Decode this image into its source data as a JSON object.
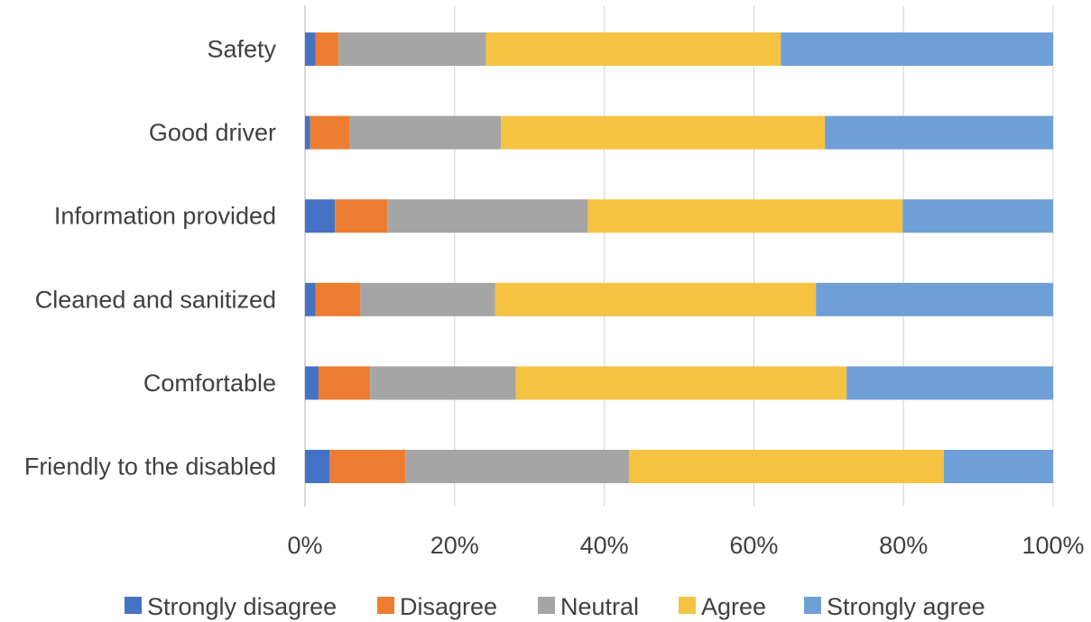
{
  "chart_data": {
    "type": "bar",
    "orientation": "horizontal",
    "stacked": "percent",
    "categories": [
      "Safety",
      "Good driver",
      "Information provided",
      "Cleaned and sanitized",
      "Comfortable",
      "Friendly to the disabled"
    ],
    "series": [
      {
        "name": "Strongly disagree",
        "color": "#4472C4",
        "values": [
          1.4,
          0.7,
          4.0,
          1.4,
          1.8,
          3.3
        ]
      },
      {
        "name": "Disagree",
        "color": "#ED7D31",
        "values": [
          3.1,
          5.3,
          7.0,
          6.0,
          6.9,
          10.1
        ]
      },
      {
        "name": "Neutral",
        "color": "#A5A5A5",
        "values": [
          19.7,
          20.2,
          26.8,
          18.0,
          19.5,
          29.9
        ]
      },
      {
        "name": "Agree",
        "color": "#F5C242",
        "values": [
          39.4,
          43.3,
          42.1,
          42.9,
          44.2,
          42.1
        ]
      },
      {
        "name": "Strongly agree",
        "color": "#6E9FD6",
        "values": [
          36.4,
          30.5,
          20.1,
          31.7,
          27.6,
          14.6
        ]
      }
    ],
    "xticks": [
      "0%",
      "20%",
      "40%",
      "60%",
      "80%",
      "100%"
    ],
    "xlim": [
      0,
      100
    ],
    "grid": true,
    "legend_position": "bottom",
    "title": "",
    "xlabel": "",
    "ylabel": ""
  }
}
